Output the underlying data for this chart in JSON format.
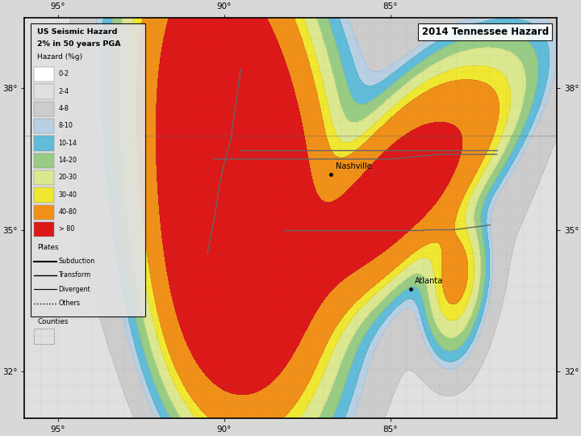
{
  "title": "2014 Tennessee Hazard",
  "legend_title1": "US Seismic Hazard",
  "legend_title2": "2% in 50 years PGA",
  "legend_subtitle": "Hazard (%g)",
  "hazard_levels": [
    "0-2",
    "2-4",
    "4-8",
    "8-10",
    "10-14",
    "14-20",
    "20-30",
    "30-40",
    "40-80",
    "> 80"
  ],
  "hazard_colors": [
    "#ffffff",
    "#e0e0e0",
    "#cccccc",
    "#b8d0e4",
    "#60bcd8",
    "#98cc84",
    "#dce890",
    "#f0e830",
    "#f09018",
    "#dc1818"
  ],
  "hazard_levels_numeric": [
    0,
    2,
    4,
    8,
    10,
    14,
    20,
    30,
    40,
    80,
    150
  ],
  "background_color": "#b8d8cc",
  "figsize": [
    7.2,
    5.4
  ],
  "dpi": 100,
  "xlim": [
    -96,
    -80
  ],
  "ylim": [
    31,
    39.5
  ],
  "nashville_lon": -86.78,
  "nashville_lat": 36.17,
  "atlanta_lon": -84.39,
  "atlanta_lat": 33.75,
  "tick_lons": [
    -95,
    -90,
    -85
  ],
  "tick_lats": [
    32,
    35,
    38
  ],
  "plates_legend": [
    {
      "label": "Subduction",
      "linestyle": "-",
      "color": "black",
      "lw": 1.5
    },
    {
      "label": "Transform",
      "linestyle": "-",
      "color": "black",
      "lw": 1.0
    },
    {
      "label": "Divergent",
      "linestyle": "-",
      "color": "black",
      "lw": 0.8
    },
    {
      "label": "Others",
      "linestyle": ":",
      "color": "black",
      "lw": 1.0
    }
  ]
}
